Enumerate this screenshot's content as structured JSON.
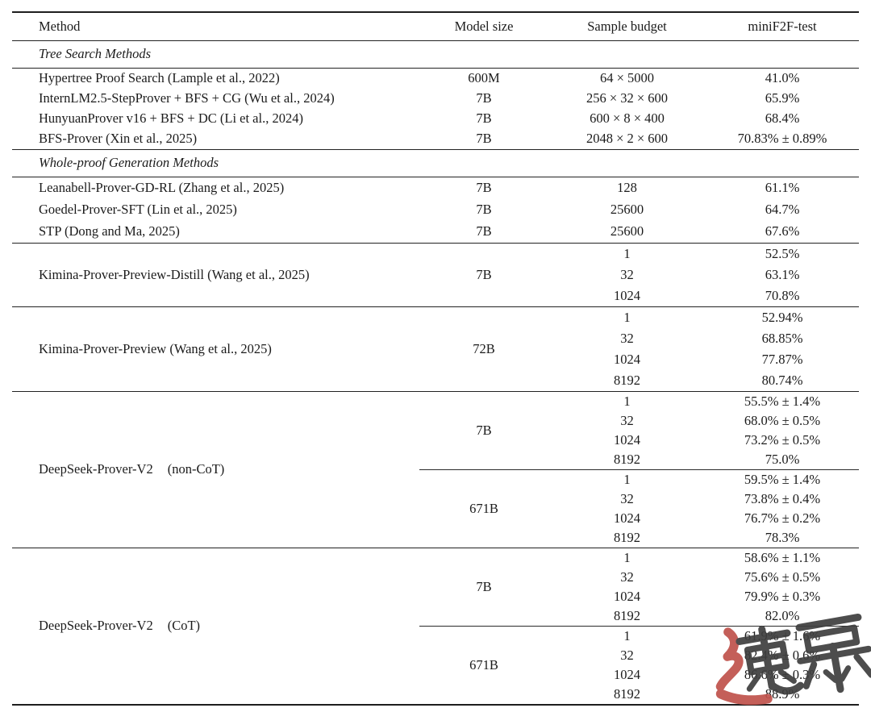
{
  "header": {
    "columns": [
      "Method",
      "Model size",
      "Sample budget",
      "miniF2F-test"
    ]
  },
  "sections": [
    {
      "title": "Tree Search Methods",
      "groups": [
        {
          "entries": [
            {
              "method": "Hypertree Proof Search (Lample et al., 2022)",
              "blocks": [
                {
                  "size": "600M",
                  "rows": [
                    {
                      "budget": "64 × 5000",
                      "result": "41.0%"
                    }
                  ]
                }
              ]
            },
            {
              "method": "InternLM2.5-StepProver + BFS + CG (Wu et al., 2024)",
              "blocks": [
                {
                  "size": "7B",
                  "rows": [
                    {
                      "budget": "256 × 32 × 600",
                      "result": "65.9%"
                    }
                  ]
                }
              ]
            },
            {
              "method": "HunyuanProver v16 + BFS + DC (Li et al., 2024)",
              "blocks": [
                {
                  "size": "7B",
                  "rows": [
                    {
                      "budget": "600 × 8 × 400",
                      "result": "68.4%"
                    }
                  ]
                }
              ]
            },
            {
              "method": "BFS-Prover (Xin et al., 2025)",
              "blocks": [
                {
                  "size": "7B",
                  "rows": [
                    {
                      "budget": "2048 × 2 × 600",
                      "result": "70.83% ± 0.89%"
                    }
                  ]
                }
              ]
            }
          ]
        }
      ]
    },
    {
      "title": "Whole-proof Generation Methods",
      "groups": [
        {
          "entries": [
            {
              "method": "Leanabell-Prover-GD-RL (Zhang et al., 2025)",
              "blocks": [
                {
                  "size": "7B",
                  "rows": [
                    {
                      "budget": "128",
                      "result": "61.1%"
                    }
                  ]
                }
              ]
            },
            {
              "method": "Goedel-Prover-SFT (Lin et al., 2025)",
              "blocks": [
                {
                  "size": "7B",
                  "rows": [
                    {
                      "budget": "25600",
                      "result": "64.7%"
                    }
                  ]
                }
              ]
            },
            {
              "method": "STP (Dong and Ma, 2025)",
              "blocks": [
                {
                  "size": "7B",
                  "rows": [
                    {
                      "budget": "25600",
                      "result": "67.6%"
                    }
                  ]
                }
              ]
            }
          ]
        },
        {
          "entries": [
            {
              "method": "Kimina-Prover-Preview-Distill (Wang et al., 2025)",
              "blocks": [
                {
                  "size": "7B",
                  "rows": [
                    {
                      "budget": "1",
                      "result": "52.5%"
                    },
                    {
                      "budget": "32",
                      "result": "63.1%"
                    },
                    {
                      "budget": "1024",
                      "result": "70.8%"
                    }
                  ]
                }
              ]
            }
          ]
        },
        {
          "entries": [
            {
              "method": "Kimina-Prover-Preview (Wang et al., 2025)",
              "blocks": [
                {
                  "size": "72B",
                  "rows": [
                    {
                      "budget": "1",
                      "result": "52.94%"
                    },
                    {
                      "budget": "32",
                      "result": "68.85%"
                    },
                    {
                      "budget": "1024",
                      "result": "77.87%"
                    },
                    {
                      "budget": "8192",
                      "result": "80.74%"
                    }
                  ]
                }
              ]
            }
          ]
        },
        {
          "entries": [
            {
              "method": "DeepSeek-Prover-V2",
              "method_suffix": "(non-CoT)",
              "blocks": [
                {
                  "size": "7B",
                  "rows": [
                    {
                      "budget": "1",
                      "result": "55.5% ± 1.4%"
                    },
                    {
                      "budget": "32",
                      "result": "68.0% ± 0.5%"
                    },
                    {
                      "budget": "1024",
                      "result": "73.2% ± 0.5%"
                    },
                    {
                      "budget": "8192",
                      "result": "75.0%"
                    }
                  ]
                },
                {
                  "size": "671B",
                  "rows": [
                    {
                      "budget": "1",
                      "result": "59.5% ± 1.4%"
                    },
                    {
                      "budget": "32",
                      "result": "73.8% ± 0.4%"
                    },
                    {
                      "budget": "1024",
                      "result": "76.7% ± 0.2%"
                    },
                    {
                      "budget": "8192",
                      "result": "78.3%"
                    }
                  ]
                }
              ]
            }
          ]
        },
        {
          "entries": [
            {
              "method": "DeepSeek-Prover-V2",
              "method_suffix": "(CoT)",
              "blocks": [
                {
                  "size": "7B",
                  "rows": [
                    {
                      "budget": "1",
                      "result": "58.6% ± 1.1%"
                    },
                    {
                      "budget": "32",
                      "result": "75.6% ± 0.5%"
                    },
                    {
                      "budget": "1024",
                      "result": "79.9% ± 0.3%"
                    },
                    {
                      "budget": "8192",
                      "result": "82.0%"
                    }
                  ]
                },
                {
                  "size": "671B",
                  "rows": [
                    {
                      "budget": "1",
                      "result": "61.9% ± 1.6%"
                    },
                    {
                      "budget": "32",
                      "result": "82.4% ± 0.6%"
                    },
                    {
                      "budget": "1024",
                      "result": "86.6% ± 0.3%"
                    },
                    {
                      "budget": "8192",
                      "result": "88.9%"
                    }
                  ]
                }
              ]
            }
          ]
        }
      ]
    }
  ],
  "watermark": {
    "glyphs": "速深",
    "ink_color": "#3e3e3e",
    "accent_color": "#c0524c"
  },
  "colors": {
    "rule": "#1e1e1e",
    "text": "#1b1b1b",
    "background": "#ffffff"
  }
}
